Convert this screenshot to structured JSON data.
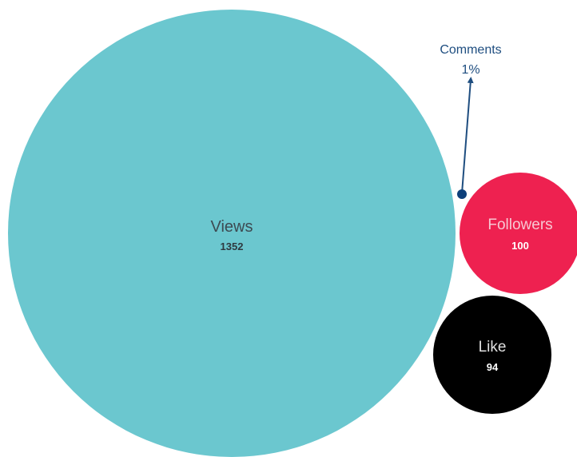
{
  "chart_data": {
    "type": "bubble",
    "series": [
      {
        "name": "Views",
        "value": 1352,
        "value_label": "1352",
        "color": "#6bc7cf",
        "label_color": "#3d4a52",
        "value_color": "#2f3a40"
      },
      {
        "name": "Followers",
        "value": 100,
        "value_label": "100",
        "color": "#ee2150",
        "label_color": "#f7c7d2",
        "value_color": "#ffffff"
      },
      {
        "name": "Like",
        "value": 94,
        "value_label": "94",
        "color": "#000000",
        "label_color": "#e0e0e0",
        "value_color": "#ffffff"
      },
      {
        "name": "Comments",
        "value_label": "1%",
        "color": "#0d3f7a",
        "annotation_color": "#1f4e80"
      }
    ]
  }
}
